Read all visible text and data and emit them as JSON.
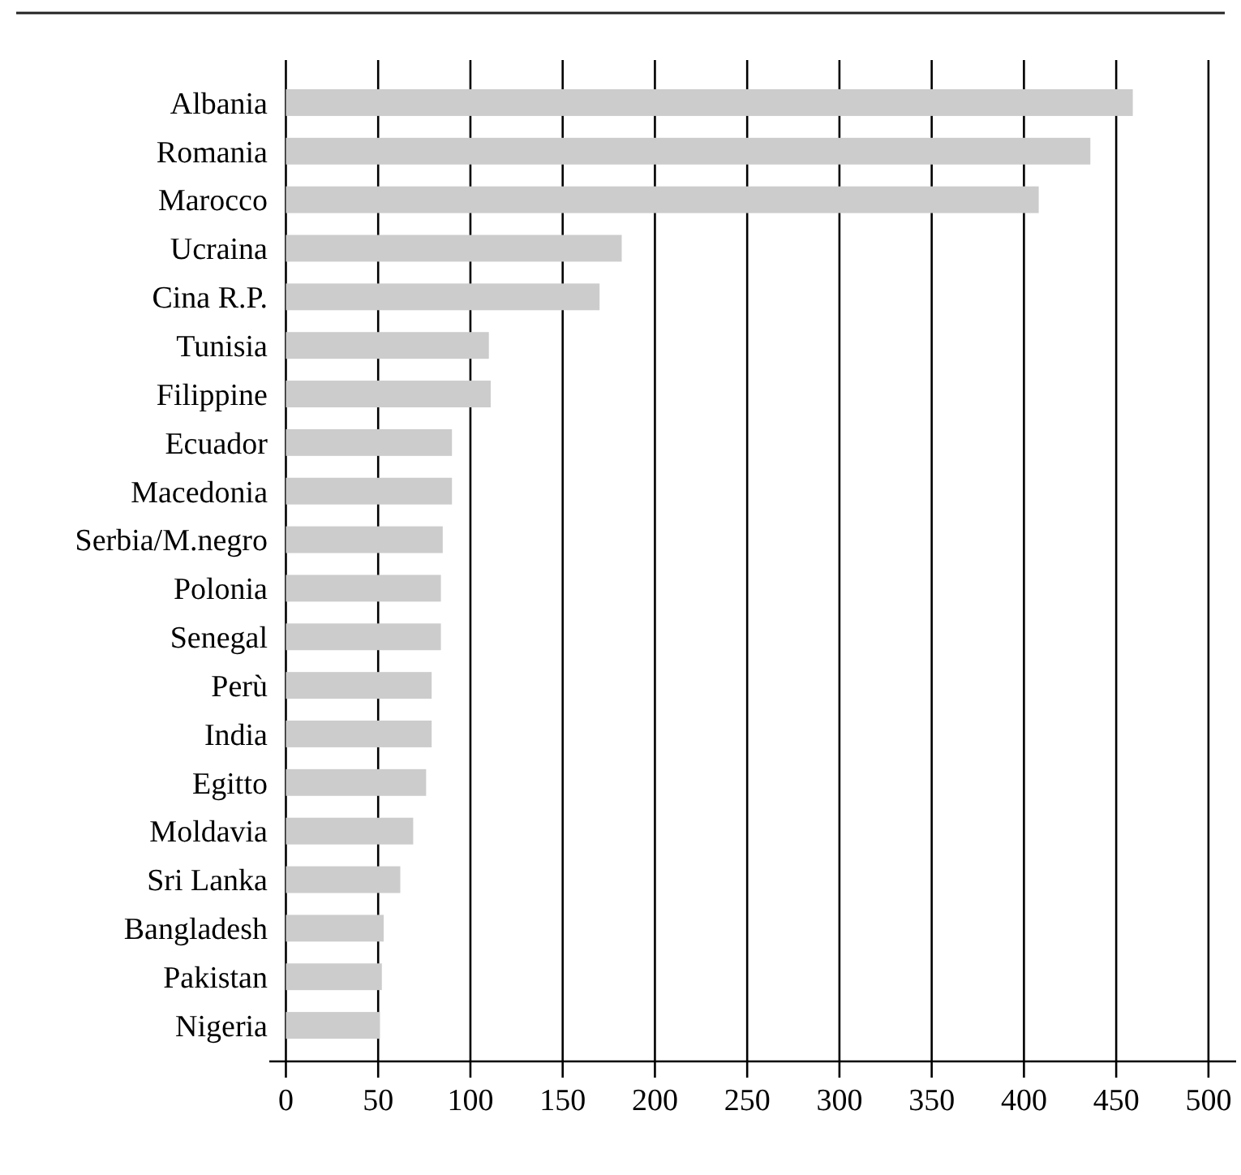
{
  "chart_data": {
    "type": "bar",
    "orientation": "horizontal",
    "categories": [
      "Albania",
      "Romania",
      "Marocco",
      "Ucraina",
      "Cina R.P.",
      "Tunisia",
      "Filippine",
      "Ecuador",
      "Macedonia",
      "Serbia/M.negro",
      "Polonia",
      "Senegal",
      "Perù",
      "India",
      "Egitto",
      "Moldavia",
      "Sri Lanka",
      "Bangladesh",
      "Pakistan",
      "Nigeria"
    ],
    "values": [
      459,
      436,
      408,
      182,
      170,
      110,
      111,
      90,
      90,
      85,
      84,
      84,
      79,
      79,
      76,
      69,
      62,
      53,
      52,
      51
    ],
    "color": "#cccccc",
    "xlim": [
      -9,
      515
    ],
    "xticks": [
      0,
      50,
      100,
      150,
      200,
      250,
      300,
      350,
      400,
      450,
      500
    ],
    "grid": "x"
  }
}
